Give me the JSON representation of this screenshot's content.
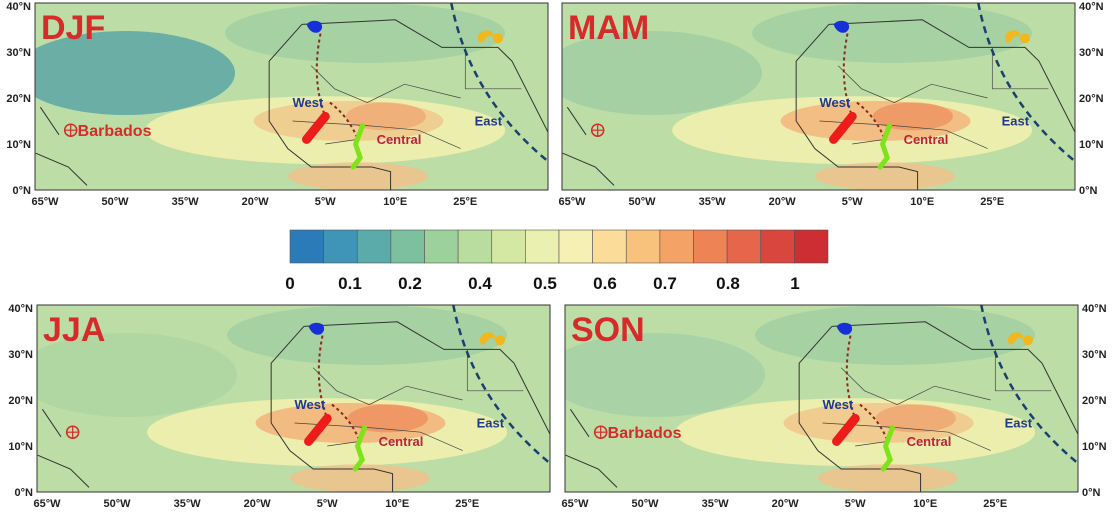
{
  "panels": [
    {
      "season": "DJF",
      "west": "West",
      "central": "Central",
      "east": "East",
      "barbados": "Barbados"
    },
    {
      "season": "MAM",
      "west": "West",
      "central": "Central",
      "east": "East"
    },
    {
      "season": "JJA",
      "west": "West",
      "central": "Central",
      "east": "East"
    },
    {
      "season": "SON",
      "west": "West",
      "central": "Central",
      "east": "East",
      "barbados": "Barbados"
    }
  ],
  "longitude_labels": [
    "65°W",
    "50°W",
    "35°W",
    "20°W",
    "5°W",
    "10°E",
    "25°E"
  ],
  "latitude_labels": [
    "0°N",
    "10°N",
    "20°N",
    "30°N",
    "40°N"
  ],
  "colorbar": {
    "colors": [
      "#2b7bb9",
      "#3e95b8",
      "#5aabaa",
      "#7cc0a0",
      "#9dd19b",
      "#b9dd9e",
      "#d4e8a4",
      "#e9f0b0",
      "#f7f0b4",
      "#fbdc98",
      "#f8c27c",
      "#f4a265",
      "#ee8456",
      "#e5664a",
      "#d9463d",
      "#cc2e33"
    ],
    "labels": [
      "0",
      "0.1",
      "0.2",
      "0.4",
      "0.5",
      "0.6",
      "0.7",
      "0.8",
      "1"
    ]
  }
}
